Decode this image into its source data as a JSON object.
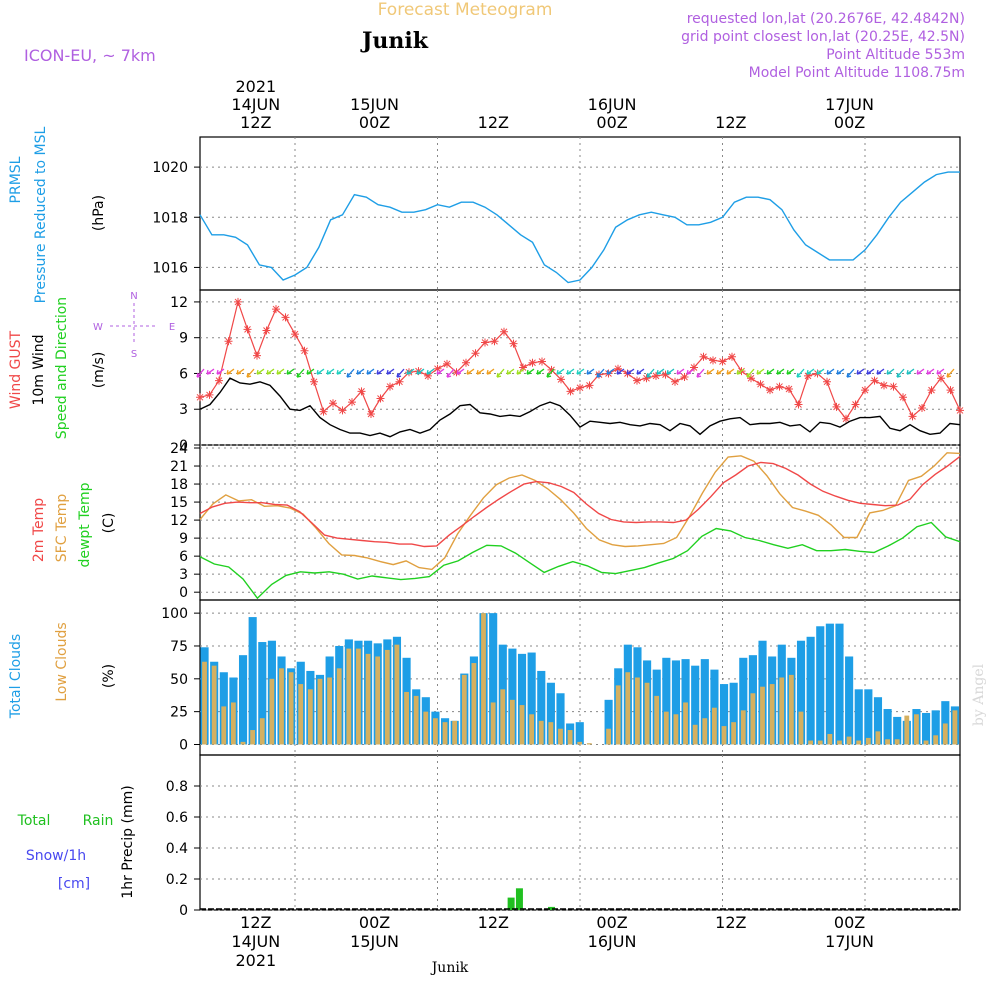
{
  "header": {
    "title": "Forecast Meteogram",
    "location": "Junik",
    "model": "ICON-EU, ~ 7km",
    "requested": "requested lon,lat (20.2676E, 42.4842N)",
    "gridpoint": "grid point closest lon,lat (20.25E, 42.5N)",
    "point_alt": "Point Altitude 553m",
    "model_alt": "Model Point Altitude 1108.75m",
    "footer_name": "Junik",
    "watermark": "by Angel"
  },
  "time_axis": {
    "top_labels": [
      {
        "l1": "2021",
        "l2": "14JUN",
        "l3": "12Z"
      },
      {
        "l1": "",
        "l2": "15JUN",
        "l3": "00Z"
      },
      {
        "l1": "",
        "l2": "",
        "l3": "12Z"
      },
      {
        "l1": "",
        "l2": "16JUN",
        "l3": "00Z"
      },
      {
        "l1": "",
        "l2": "",
        "l3": "12Z"
      },
      {
        "l1": "",
        "l2": "17JUN",
        "l3": "00Z"
      }
    ],
    "bottom_labels": [
      {
        "l1": "12Z",
        "l2": "14JUN",
        "l3": "2021"
      },
      {
        "l1": "00Z",
        "l2": "15JUN",
        "l3": ""
      },
      {
        "l1": "12Z",
        "l2": "",
        "l3": ""
      },
      {
        "l1": "00Z",
        "l2": "16JUN",
        "l3": ""
      },
      {
        "l1": "12Z",
        "l2": "",
        "l3": ""
      },
      {
        "l1": "00Z",
        "l2": "17JUN",
        "l3": ""
      }
    ]
  },
  "colors": {
    "pressure": "#1e9ee6",
    "gust": "#f04848",
    "wind": "#000000",
    "temp": "#f04848",
    "sfc": "#e0a040",
    "dew": "#20d020",
    "total_clouds": "#1e9ee6",
    "low_clouds": "#d4b060",
    "rain": "#20c020",
    "snow": "#4848f0",
    "purple": "#b060e0",
    "title": "#f0c878"
  },
  "chart_data": [
    {
      "type": "line",
      "panel": "pressure",
      "ylabel_lines": [
        "PRMSL",
        "Pressure Reduced to MSL"
      ],
      "unit": "(hPa)",
      "yticks": [
        1016,
        1018,
        1020
      ],
      "ylim": [
        1015.1,
        1021.2
      ],
      "x_hours": [
        0,
        1,
        2,
        3,
        4,
        5,
        6,
        7,
        8,
        9,
        10,
        11,
        12,
        13,
        14,
        15,
        16,
        17,
        18,
        19,
        20,
        21,
        22,
        23,
        24,
        25,
        26,
        27,
        28,
        29,
        30,
        31,
        32,
        33,
        34,
        35,
        36,
        37,
        38,
        39,
        40,
        41,
        42,
        43,
        44,
        45,
        46,
        47,
        48,
        49,
        50,
        51,
        52,
        53,
        54,
        55,
        56,
        57,
        58,
        59,
        60,
        61,
        62,
        63,
        64
      ],
      "series": [
        {
          "name": "PRMSL",
          "values": [
            1018.1,
            1017.3,
            1017.3,
            1017.2,
            1016.9,
            1016.1,
            1016.0,
            1015.5,
            1015.7,
            1016.0,
            1016.8,
            1017.9,
            1018.1,
            1018.9,
            1018.8,
            1018.5,
            1018.4,
            1018.2,
            1018.2,
            1018.3,
            1018.5,
            1018.4,
            1018.6,
            1018.6,
            1018.4,
            1018.1,
            1017.7,
            1017.3,
            1017.0,
            1016.1,
            1015.8,
            1015.4,
            1015.5,
            1016.0,
            1016.7,
            1017.6,
            1017.9,
            1018.1,
            1018.2,
            1018.1,
            1018.0,
            1017.7,
            1017.7,
            1017.8,
            1018.0,
            1018.6,
            1018.8,
            1018.8,
            1018.7,
            1018.3,
            1017.5,
            1016.9,
            1016.6,
            1016.3,
            1016.3,
            1016.3,
            1016.7,
            1017.3,
            1018.0,
            1018.6,
            1019.0,
            1019.4,
            1019.7,
            1019.8,
            1019.8
          ]
        }
      ]
    },
    {
      "type": "line",
      "panel": "wind",
      "ylabel_lines": [
        "Wind GUST",
        "10m Wind",
        "Speed and Direction"
      ],
      "unit": "(m/s)",
      "compass": {
        "n": "N",
        "s": "S",
        "w": "W",
        "e": "E"
      },
      "yticks": [
        0,
        3,
        6,
        9,
        12
      ],
      "ylim": [
        0,
        13
      ],
      "series": [
        {
          "name": "Wind GUST",
          "values": [
            4.0,
            4.2,
            5.4,
            8.7,
            12.0,
            9.7,
            7.5,
            9.6,
            11.4,
            10.7,
            9.3,
            7.9,
            5.3,
            2.8,
            3.5,
            2.9,
            3.6,
            4.5,
            2.6,
            3.9,
            4.9,
            5.3,
            6.1,
            6.2,
            5.8,
            6.4,
            6.8,
            6.1,
            6.9,
            7.7,
            8.6,
            8.7,
            9.5,
            8.5,
            6.5,
            6.9,
            7.0,
            6.3,
            5.5,
            4.5,
            4.8,
            5.0,
            5.9,
            6.0,
            6.4,
            6.0,
            5.4,
            5.6,
            5.8,
            5.9,
            5.3,
            5.7,
            6.5,
            7.4,
            7.1,
            7.0,
            7.4,
            6.2,
            5.6,
            5.1,
            4.6,
            4.9,
            4.7,
            3.4,
            5.8,
            6.0,
            5.3,
            3.2,
            2.2,
            3.4,
            4.6,
            5.4,
            5.0,
            4.9,
            4.0,
            2.4,
            3.1,
            4.6,
            5.6,
            4.6,
            2.9
          ]
        },
        {
          "name": "10m Wind",
          "values": [
            3.0,
            3.4,
            4.4,
            5.6,
            5.2,
            5.1,
            5.3,
            5.0,
            4.1,
            3.0,
            2.9,
            3.3,
            2.3,
            1.7,
            1.3,
            1.0,
            1.0,
            0.8,
            1.0,
            0.7,
            1.1,
            1.3,
            1.0,
            1.3,
            2.1,
            2.6,
            3.3,
            3.4,
            2.7,
            2.6,
            2.4,
            2.5,
            2.4,
            2.8,
            3.3,
            3.6,
            3.3,
            2.5,
            1.5,
            2.0,
            1.9,
            1.8,
            1.9,
            1.7,
            1.6,
            1.8,
            1.7,
            1.2,
            1.8,
            1.6,
            0.9,
            1.6,
            2.0,
            2.2,
            2.3,
            1.7,
            1.8,
            1.8,
            1.9,
            1.6,
            1.7,
            1.1,
            1.9,
            1.8,
            1.5,
            2.0,
            2.3,
            2.3,
            2.4,
            1.4,
            1.2,
            1.7,
            1.2,
            0.9,
            1.0,
            1.8,
            1.7
          ]
        }
      ]
    },
    {
      "type": "line",
      "panel": "temperature",
      "ylabel_lines": [
        "2m Temp",
        "SFC Temp",
        "dewpt Temp"
      ],
      "unit": "(C)",
      "yticks": [
        0,
        3,
        6,
        9,
        12,
        15,
        18,
        21,
        24
      ],
      "ylim": [
        -1.3,
        24.5
      ],
      "series": [
        {
          "name": "2m Temp",
          "values": [
            13.1,
            14.2,
            14.8,
            15.0,
            14.9,
            14.9,
            14.6,
            14.5,
            13.4,
            11.5,
            9.5,
            9.0,
            8.8,
            8.6,
            8.4,
            8.3,
            8.0,
            8.0,
            7.6,
            7.7,
            9.5,
            11.0,
            12.6,
            14.1,
            15.5,
            16.8,
            18.0,
            18.4,
            18.2,
            17.6,
            16.6,
            14.7,
            13.1,
            12.1,
            11.7,
            11.6,
            11.7,
            11.7,
            11.6,
            12.0,
            13.8,
            15.9,
            18.2,
            19.5,
            21.0,
            21.6,
            21.4,
            20.6,
            19.5,
            18.0,
            16.8,
            16.0,
            15.3,
            14.8,
            14.6,
            14.4,
            14.5,
            15.5,
            17.9,
            19.6,
            21.0,
            22.6
          ]
        },
        {
          "name": "SFC Temp",
          "values": [
            12.1,
            14.7,
            16.2,
            15.2,
            15.4,
            14.3,
            14.4,
            14.0,
            13.0,
            10.7,
            8.1,
            6.2,
            6.1,
            5.7,
            5.1,
            4.6,
            5.2,
            4.1,
            3.8,
            5.7,
            9.7,
            12.8,
            15.7,
            17.9,
            19.0,
            19.5,
            18.6,
            17.2,
            15.4,
            13.2,
            10.6,
            8.7,
            7.9,
            7.6,
            7.7,
            7.9,
            8.1,
            9.1,
            12.6,
            16.5,
            20.0,
            22.5,
            22.7,
            21.8,
            19.4,
            16.4,
            14.1,
            13.5,
            12.8,
            11.2,
            9.1,
            9.1,
            13.2,
            13.6,
            14.4,
            18.6,
            19.3,
            21.0,
            23.2,
            23.1
          ]
        },
        {
          "name": "dewpt Temp",
          "values": [
            5.9,
            4.7,
            4.2,
            2.2,
            -1.0,
            1.3,
            2.8,
            3.4,
            3.2,
            3.4,
            3.0,
            2.2,
            2.7,
            2.4,
            2.1,
            2.3,
            2.6,
            4.5,
            5.2,
            6.6,
            7.8,
            7.7,
            6.5,
            4.9,
            3.3,
            4.3,
            5.1,
            4.4,
            3.3,
            3.1,
            3.6,
            4.1,
            4.9,
            5.6,
            6.9,
            9.3,
            10.6,
            10.2,
            9.1,
            8.6,
            7.9,
            7.3,
            7.9,
            6.9,
            6.9,
            7.1,
            6.8,
            6.6,
            7.7,
            9.0,
            10.9,
            11.6,
            9.2,
            8.4
          ]
        }
      ]
    },
    {
      "type": "bar",
      "panel": "clouds",
      "ylabel_lines": [
        "Total Clouds",
        "Low Clouds"
      ],
      "unit": "(%)",
      "yticks": [
        0,
        25,
        50,
        75,
        100
      ],
      "ylim": [
        -8,
        110
      ],
      "series": [
        {
          "name": "Total Clouds",
          "values": [
            74,
            63,
            55,
            51,
            68,
            97,
            78,
            79,
            67,
            58,
            63,
            56,
            53,
            67,
            75,
            80,
            79,
            79,
            77,
            80,
            82,
            66,
            42,
            36,
            25,
            20,
            18,
            54,
            67,
            100,
            100,
            76,
            73,
            69,
            70,
            56,
            47,
            39,
            16,
            17,
            0,
            0,
            34,
            58,
            76,
            74,
            64,
            57,
            66,
            64,
            65,
            60,
            65,
            57,
            46,
            47,
            66,
            68,
            79,
            67,
            76,
            66,
            79,
            82,
            90,
            92,
            92,
            67,
            42,
            42,
            36,
            27,
            21,
            18,
            27,
            24,
            26,
            33,
            29
          ]
        },
        {
          "name": "Low Clouds",
          "values": [
            63,
            60,
            29,
            32,
            2,
            11,
            20,
            50,
            58,
            55,
            46,
            42,
            50,
            51,
            58,
            73,
            73,
            69,
            67,
            72,
            76,
            40,
            37,
            25,
            20,
            17,
            18,
            53,
            62,
            100,
            32,
            42,
            34,
            30,
            23,
            18,
            17,
            12,
            11,
            2,
            1,
            0,
            12,
            45,
            55,
            51,
            47,
            37,
            25,
            23,
            32,
            15,
            20,
            28,
            14,
            17,
            26,
            39,
            44,
            46,
            51,
            53,
            25,
            3,
            3,
            8,
            3,
            6,
            3,
            5,
            10,
            4,
            4,
            22,
            23,
            3,
            7,
            16,
            26,
            3
          ]
        }
      ]
    },
    {
      "type": "bar",
      "panel": "precip",
      "ylabel_lines": [
        "Total",
        "Rain",
        "Snow/1h",
        "[cm]"
      ],
      "ylabel_precip": "1hr Precip (mm)",
      "yticks": [
        "0",
        "0.2",
        "0.4",
        "0.6",
        "0.8"
      ],
      "ylim": [
        0,
        1.0
      ],
      "series": [
        {
          "name": "Rain",
          "bars": [
            {
              "hour": 26.2,
              "value": 0.08
            },
            {
              "hour": 26.9,
              "value": 0.14
            },
            {
              "hour": 29.6,
              "value": 0.02
            }
          ]
        }
      ]
    }
  ]
}
